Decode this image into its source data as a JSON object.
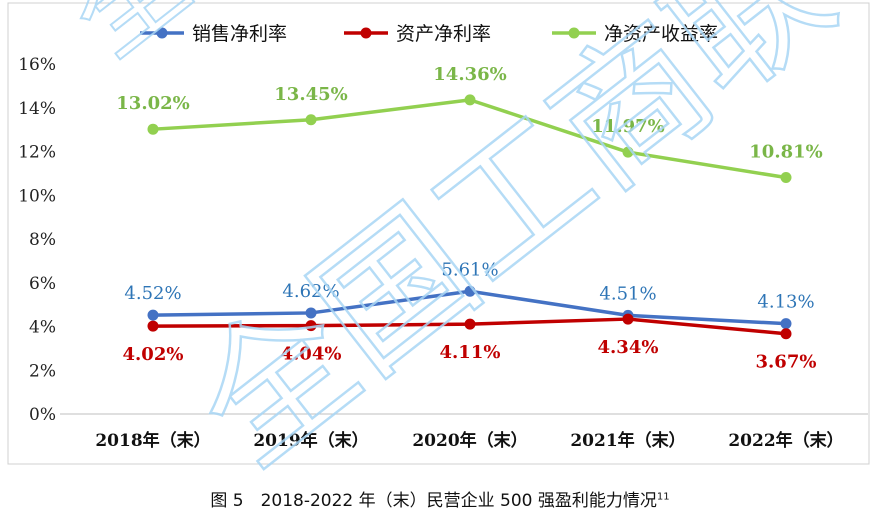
{
  "chart_data": {
    "type": "line",
    "categories": [
      "2018年（末）",
      "2019年（末）",
      "2020年（末）",
      "2021年（末）",
      "2022年（末）"
    ],
    "ylim": [
      0,
      16
    ],
    "yticks": [
      "0%",
      "2%",
      "4%",
      "6%",
      "8%",
      "10%",
      "12%",
      "14%",
      "16%"
    ],
    "grid": false,
    "legend_position": "top",
    "series": [
      {
        "name": "销售净利率",
        "color": "#4472c4",
        "values": [
          4.52,
          4.62,
          5.61,
          4.51,
          4.13
        ],
        "labels": [
          "4.52%",
          "4.62%",
          "5.61%",
          "4.51%",
          "4.13%"
        ]
      },
      {
        "name": "资产净利率",
        "color": "#c00000",
        "values": [
          4.02,
          4.04,
          4.11,
          4.34,
          3.67
        ],
        "labels": [
          "4.02%",
          "4.04%",
          "4.11%",
          "4.34%",
          "3.67%"
        ]
      },
      {
        "name": "净资产收益率",
        "color": "#92d050",
        "label_color": "#7ab648",
        "values": [
          13.02,
          13.45,
          14.36,
          11.97,
          10.81
        ],
        "labels": [
          "13.02%",
          "13.45%",
          "14.36%",
          "11.97%",
          "10.81%"
        ]
      }
    ]
  },
  "caption": {
    "text": "图 5　2018-2022 年（末）民营企业 500 强盈利能力情况",
    "footnote": "11"
  },
  "watermark": "全国工商联"
}
